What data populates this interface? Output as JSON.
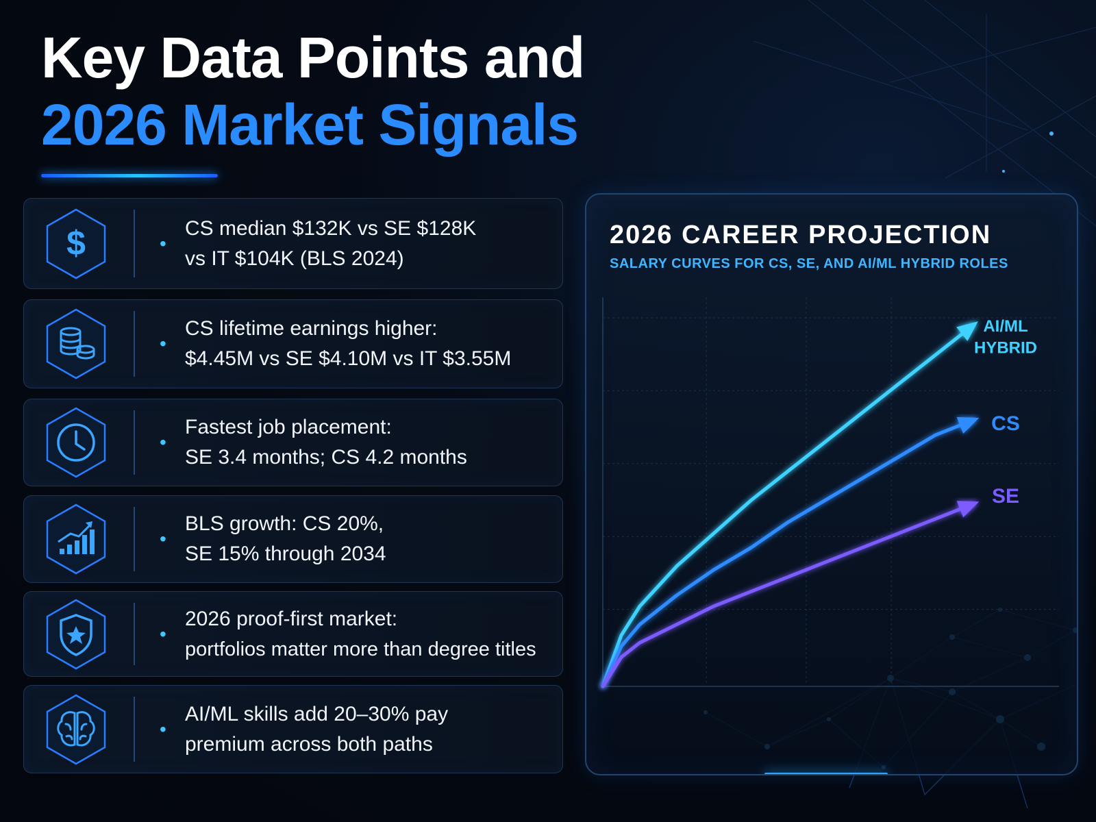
{
  "header": {
    "title_line1": "Key Data Points and",
    "title_line2": "2026 Market Signals"
  },
  "cards": [
    {
      "icon": "dollar-icon",
      "lines": [
        "CS median $132K vs SE $128K",
        "vs IT $104K (BLS 2024)"
      ]
    },
    {
      "icon": "coins-icon",
      "lines": [
        "CS lifetime earnings higher:",
        "$4.45M vs SE $4.10M vs IT $3.55M"
      ]
    },
    {
      "icon": "clock-icon",
      "lines": [
        "Fastest job placement:",
        "SE 3.4 months; CS 4.2 months"
      ]
    },
    {
      "icon": "growth-chart-icon",
      "lines": [
        "BLS growth: CS 20%,",
        "SE 15% through 2034"
      ]
    },
    {
      "icon": "shield-star-icon",
      "lines": [
        "2026 proof-first market:",
        "portfolios matter more than degree titles"
      ]
    },
    {
      "icon": "brain-icon",
      "lines": [
        "AI/ML skills add 20–30% pay",
        "premium across both paths"
      ]
    }
  ],
  "colors": {
    "accent_blue": "#2a8cff",
    "cyan": "#3fd2ff",
    "cs_blue": "#2f8cff",
    "se_purple": "#7b5cff"
  },
  "chart_data": {
    "type": "line",
    "title": "2026 CAREER PROJECTION",
    "subtitle": "SALARY CURVES FOR CS, SE, AND AI/ML HYBRID ROLES",
    "xlabel": "",
    "ylabel": "",
    "xlim": [
      0,
      1
    ],
    "ylim": [
      0,
      1
    ],
    "grid": true,
    "legend": "end-of-line labels",
    "x": [
      0,
      0.05,
      0.1,
      0.2,
      0.3,
      0.4,
      0.5,
      0.6,
      0.7,
      0.8,
      0.9,
      1.0
    ],
    "series": [
      {
        "name": "AI/ML HYBRID",
        "label_lines": [
          "AI/ML",
          "HYBRID"
        ],
        "color": "#3fd2ff",
        "values": [
          0,
          0.14,
          0.22,
          0.33,
          0.42,
          0.51,
          0.59,
          0.67,
          0.75,
          0.83,
          0.91,
          0.99
        ]
      },
      {
        "name": "CS",
        "label_lines": [
          "CS"
        ],
        "color": "#2f8cff",
        "values": [
          0,
          0.11,
          0.17,
          0.25,
          0.32,
          0.38,
          0.45,
          0.51,
          0.57,
          0.63,
          0.69,
          0.73
        ]
      },
      {
        "name": "SE",
        "label_lines": [
          "SE"
        ],
        "color": "#7b5cff",
        "values": [
          0,
          0.08,
          0.12,
          0.17,
          0.22,
          0.26,
          0.3,
          0.34,
          0.38,
          0.42,
          0.46,
          0.5
        ]
      }
    ]
  }
}
